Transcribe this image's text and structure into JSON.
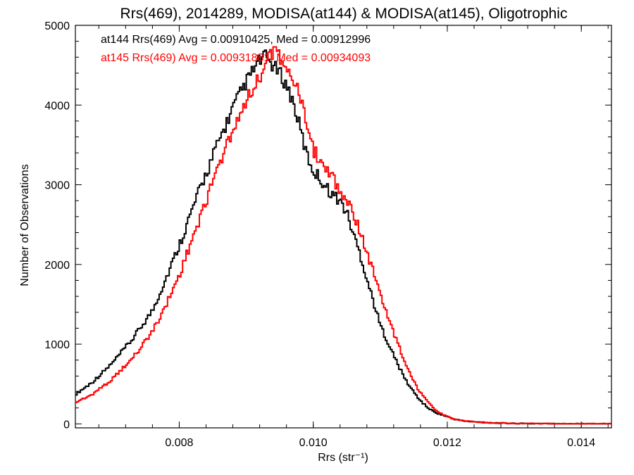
{
  "chart_data": {
    "type": "line",
    "title": "Rrs(469), 2014289, MODISA(at144) & MODISA(at145), Oligotrophic",
    "xlabel": "Rrs (str⁻¹)",
    "ylabel": "Number of Observations",
    "xlim": [
      0.00645,
      0.01445
    ],
    "ylim": [
      -50,
      5000
    ],
    "xticks": [
      0.008,
      0.01,
      0.012,
      0.014
    ],
    "xtick_labels": [
      "0.008",
      "0.010",
      "0.012",
      "0.014"
    ],
    "yticks": [
      0,
      1000,
      2000,
      3000,
      4000,
      5000
    ],
    "ytick_labels": [
      "0",
      "1000",
      "2000",
      "3000",
      "4000",
      "5000"
    ],
    "grid": false,
    "legend_placement": "top-left",
    "series": [
      {
        "name": "at144 Rrs(469) Avg = 0.00910425, Med = 0.00912996",
        "color": "#000000",
        "x": [
          0.00645,
          0.0067,
          0.007,
          0.0073,
          0.0076,
          0.0078,
          0.008,
          0.0082,
          0.0084,
          0.0086,
          0.0088,
          0.009,
          0.0091,
          0.0092,
          0.0093,
          0.0094,
          0.0095,
          0.0096,
          0.0097,
          0.0098,
          0.0099,
          0.01,
          0.0101,
          0.0102,
          0.0103,
          0.0104,
          0.0105,
          0.0106,
          0.0107,
          0.0108,
          0.0109,
          0.011,
          0.0111,
          0.0112,
          0.0113,
          0.0114,
          0.0115,
          0.0116,
          0.0117,
          0.0118,
          0.0119,
          0.012,
          0.0121,
          0.0122,
          0.0123,
          0.0124,
          0.0125,
          0.0126,
          0.0127,
          0.0128,
          0.0129,
          0.013,
          0.0132,
          0.0134,
          0.0136,
          0.0138,
          0.014,
          0.01445
        ],
        "y": [
          370,
          520,
          760,
          1060,
          1420,
          1820,
          2240,
          2700,
          3140,
          3560,
          3960,
          4290,
          4430,
          4560,
          4610,
          4490,
          4400,
          4250,
          4040,
          3720,
          3380,
          3180,
          3080,
          2960,
          2870,
          2800,
          2650,
          2380,
          2130,
          1820,
          1530,
          1240,
          1050,
          860,
          680,
          520,
          400,
          290,
          210,
          150,
          120,
          90,
          60,
          45,
          30,
          25,
          20,
          15,
          12,
          10,
          7,
          5,
          4,
          3,
          2,
          1,
          1,
          0
        ]
      },
      {
        "name": "at145 Rrs(469) Avg = 0.00931881, Med = 0.00934093",
        "color": "#ff0000",
        "x": [
          0.00645,
          0.0067,
          0.007,
          0.0073,
          0.0076,
          0.0078,
          0.008,
          0.0082,
          0.0084,
          0.0086,
          0.0088,
          0.009,
          0.0091,
          0.0092,
          0.0093,
          0.0094,
          0.0095,
          0.0096,
          0.0097,
          0.0098,
          0.0099,
          0.01,
          0.0101,
          0.0102,
          0.0103,
          0.0104,
          0.0105,
          0.0106,
          0.0107,
          0.0108,
          0.0109,
          0.011,
          0.0111,
          0.0112,
          0.0113,
          0.0114,
          0.0115,
          0.0116,
          0.0117,
          0.0118,
          0.0119,
          0.012,
          0.0121,
          0.0122,
          0.0123,
          0.0124,
          0.0125,
          0.0126,
          0.0127,
          0.0128,
          0.0129,
          0.013,
          0.0132,
          0.0134,
          0.0136,
          0.0138,
          0.014,
          0.01445
        ],
        "y": [
          270,
          370,
          560,
          820,
          1160,
          1490,
          1860,
          2340,
          2800,
          3260,
          3700,
          4070,
          4210,
          4350,
          4520,
          4680,
          4620,
          4480,
          4350,
          4110,
          3740,
          3430,
          3320,
          3220,
          3090,
          2920,
          2820,
          2640,
          2420,
          2140,
          1900,
          1620,
          1380,
          1150,
          920,
          720,
          530,
          390,
          280,
          190,
          130,
          90,
          60,
          45,
          35,
          28,
          22,
          16,
          12,
          9,
          7,
          5,
          4,
          3,
          2,
          1,
          1,
          0
        ]
      }
    ]
  }
}
